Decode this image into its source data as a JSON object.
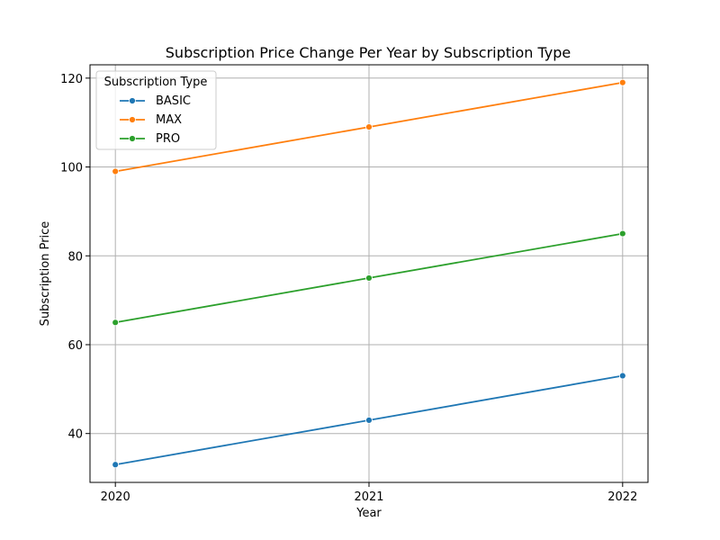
{
  "chart_data": {
    "type": "line",
    "title": "Subscription Price Change Per Year by Subscription Type",
    "xlabel": "Year",
    "ylabel": "Subscription Price",
    "x": [
      "2020",
      "2021",
      "2022"
    ],
    "xlim": [
      2019.9,
      2022.1
    ],
    "ylim": [
      29,
      123
    ],
    "yticks": [
      40,
      60,
      80,
      100,
      120
    ],
    "grid": true,
    "legend": {
      "title": "Subscription Type",
      "placement": "top-left"
    },
    "series": [
      {
        "name": "BASIC",
        "color": "#1f77b4",
        "values": [
          33,
          43,
          53
        ]
      },
      {
        "name": "MAX",
        "color": "#ff7f0e",
        "values": [
          99,
          109,
          119
        ]
      },
      {
        "name": "PRO",
        "color": "#2ca02c",
        "values": [
          65,
          75,
          85
        ]
      }
    ]
  }
}
